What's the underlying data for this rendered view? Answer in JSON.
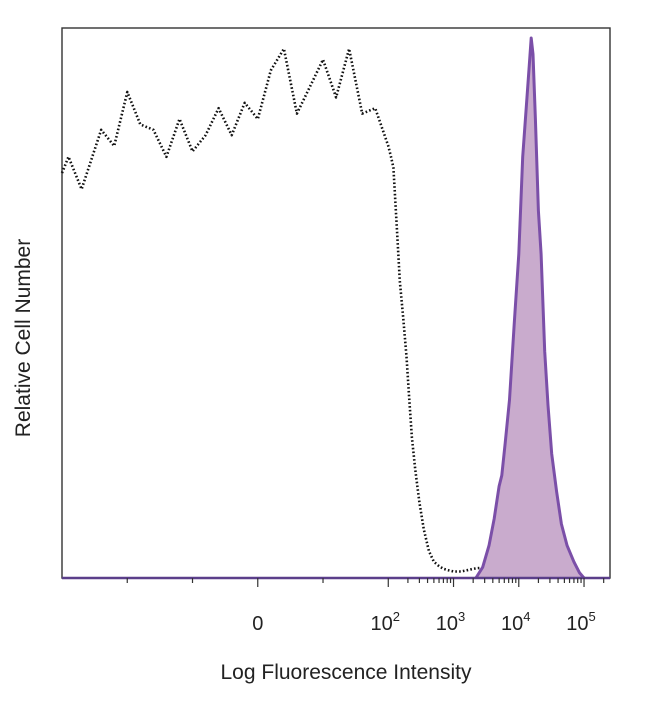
{
  "chart_data": {
    "type": "area",
    "title": "",
    "xlabel": "Log Fluorescence Intensity",
    "ylabel": "Relative Cell Number",
    "x_scale": "biexponential",
    "xlim": [
      -150,
      250000
    ],
    "ylim": [
      0,
      100
    ],
    "grid": false,
    "legend": "none",
    "x_ticks": [
      {
        "value": 0,
        "base": "0",
        "exp": ""
      },
      {
        "value": 100,
        "base": "10",
        "exp": "2"
      },
      {
        "value": 1000,
        "base": "10",
        "exp": "3"
      },
      {
        "value": 10000,
        "base": "10",
        "exp": "4"
      },
      {
        "value": 100000,
        "base": "10",
        "exp": "5"
      }
    ],
    "series": [
      {
        "style": "dotted",
        "color": "#111111",
        "fill": "none",
        "x": [
          -150,
          -145,
          -135,
          -120,
          -110,
          -100,
          -90,
          -80,
          -70,
          -60,
          -50,
          -40,
          -30,
          -20,
          -10,
          0,
          10,
          20,
          30,
          40,
          50,
          60,
          70,
          80,
          90,
          100,
          110,
          120,
          135,
          150,
          170,
          190,
          210,
          230,
          260,
          300,
          350,
          420,
          500,
          600,
          700,
          850,
          1000,
          1300,
          1700,
          2200,
          2800,
          3500
        ],
        "y": [
          75,
          78,
          72,
          83,
          80,
          90,
          84,
          83,
          78,
          85,
          79,
          82,
          87,
          82,
          88,
          85,
          94,
          98,
          86,
          91,
          96,
          89,
          98,
          86,
          87,
          80,
          78,
          76,
          65,
          55,
          48,
          41,
          33,
          26,
          20,
          14,
          9,
          5,
          3,
          2.2,
          1.7,
          1.4,
          1.2,
          1.2,
          1.5,
          1.8,
          1.9,
          0
        ]
      },
      {
        "style": "solid",
        "color": "#7b4fa8",
        "fill": "#c9abcd",
        "x": [
          2200,
          2800,
          3500,
          4200,
          5000,
          5500,
          6200,
          7200,
          8500,
          10000,
          11500,
          13000,
          14500,
          15500,
          16500,
          18000,
          20000,
          22000,
          25000,
          28000,
          32000,
          38000,
          45000,
          55000,
          70000,
          85000,
          100000
        ],
        "y": [
          0,
          2,
          6,
          11,
          17,
          19,
          25,
          33,
          47,
          60,
          78,
          87,
          95,
          100,
          97,
          85,
          68,
          60,
          42,
          32,
          23,
          16,
          10,
          6,
          3,
          1,
          0
        ]
      }
    ]
  }
}
